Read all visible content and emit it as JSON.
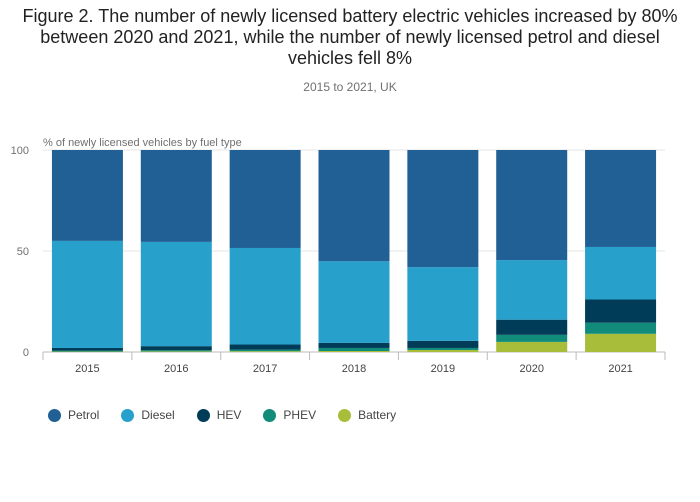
{
  "title": "Figure 2. The number of newly licensed battery electric vehicles increased by 80% between 2020 and 2021, while the number of newly licensed petrol and diesel vehicles fell 8%",
  "subtitle": "2015 to 2021, UK",
  "chart_data": {
    "type": "bar",
    "stacked": true,
    "title": "Figure 2. The number of newly licensed battery electric vehicles increased by 80% between 2020 and 2021, while the number of newly licensed petrol and diesel vehicles fell 8%",
    "subtitle": "2015 to 2021, UK",
    "ylabel": "% of newly licensed vehicles by fuel type",
    "xlabel": "",
    "ylim": [
      0,
      100
    ],
    "yticks": [
      0,
      50,
      100
    ],
    "categories": [
      "2015",
      "2016",
      "2017",
      "2018",
      "2019",
      "2020",
      "2021"
    ],
    "series": [
      {
        "name": "Battery",
        "color": "#a8bd3a",
        "values": [
          0.2,
          0.3,
          0.4,
          0.5,
          1.0,
          5.0,
          9.0
        ]
      },
      {
        "name": "PHEV",
        "color": "#118c7b",
        "values": [
          0.5,
          0.6,
          0.8,
          1.5,
          1.0,
          3.5,
          5.5
        ]
      },
      {
        "name": "HEV",
        "color": "#003c57",
        "values": [
          1.3,
          2.0,
          2.5,
          2.5,
          3.5,
          7.5,
          11.5
        ]
      },
      {
        "name": "Diesel",
        "color": "#27a0cc",
        "values": [
          53.0,
          51.6,
          47.8,
          40.4,
          36.5,
          29.5,
          26.0
        ]
      },
      {
        "name": "Petrol",
        "color": "#206095",
        "values": [
          45.0,
          45.5,
          48.5,
          55.1,
          58.0,
          54.5,
          48.0
        ]
      }
    ]
  },
  "legend": [
    {
      "name": "Petrol",
      "color": "#206095"
    },
    {
      "name": "Diesel",
      "color": "#27a0cc"
    },
    {
      "name": "HEV",
      "color": "#003c57"
    },
    {
      "name": "PHEV",
      "color": "#118c7b"
    },
    {
      "name": "Battery",
      "color": "#a8bd3a"
    }
  ]
}
